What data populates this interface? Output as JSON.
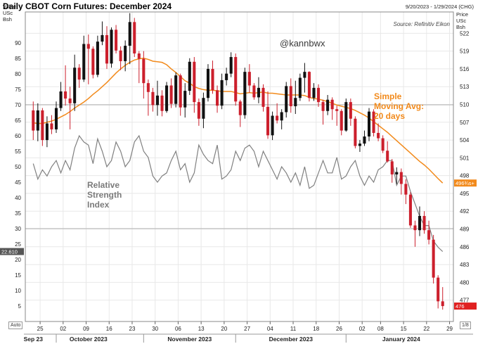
{
  "header": {
    "title": "Daily CBOT Corn Futures: December 2024",
    "date_range": "9/20/2023 - 1/29/2024 (CHG)",
    "source": "Source: Refinitiv Eikon",
    "watermark": "@kannbwx",
    "left_axis_header": [
      "Value",
      "USc",
      "Bsh"
    ],
    "right_axis_header": [
      "Price",
      "USc",
      "Bsh"
    ],
    "auto_label": "Auto",
    "scale_label": "1/8"
  },
  "annotations": {
    "sma_lines": [
      "Simple",
      "Moving Avg:",
      "20 days"
    ],
    "rsi_lines": [
      "Relative",
      "Strength",
      "Index"
    ]
  },
  "colors": {
    "up_candle": "#111111",
    "down_candle": "#cc1f2c",
    "sma_line": "#f28a1b",
    "rsi_line": "#808080",
    "grid": "#e8e8e8",
    "last_price_box": "#e02020",
    "sma_price_box": "#f28a1b",
    "rsi_value_box": "#555555"
  },
  "chart_data": {
    "type": "candlestick",
    "title": "Daily CBOT Corn Futures: December 2024",
    "y_left": {
      "label": "Value USc Bsh",
      "lim": [
        0,
        100
      ],
      "ticks": [
        5,
        10,
        15,
        20,
        25,
        30,
        35,
        40,
        45,
        50,
        55,
        60,
        65,
        70,
        75,
        80,
        85,
        90
      ]
    },
    "y_right": {
      "label": "Price USc Bsh",
      "lim": [
        473.4,
        525.6
      ],
      "ticks": [
        477,
        480,
        483,
        486,
        489,
        492,
        495,
        498,
        501,
        504,
        507,
        510,
        513,
        516,
        519,
        522
      ]
    },
    "x_ticks": [
      "25",
      "02",
      "09",
      "16",
      "23",
      "30",
      "06",
      "13",
      "20",
      "27",
      "04",
      "11",
      "18",
      "26",
      "02",
      "08",
      "15",
      "22",
      "29"
    ],
    "x_months": [
      "Sep 23",
      "October 2023",
      "November 2023",
      "December 2023",
      "January 2024"
    ],
    "reference_lines": [
      30,
      70
    ],
    "labels": {
      "rsi_value": "22.610",
      "sma_value": "496¾s+",
      "last_price": "476"
    },
    "candles": [
      [
        509.0,
        510.5,
        504.0,
        505.6
      ],
      [
        505.6,
        510.2,
        503.8,
        509.0
      ],
      [
        509.0,
        509.4,
        503.0,
        504.0
      ],
      [
        504.0,
        508.0,
        502.8,
        506.8
      ],
      [
        506.8,
        508.2,
        505.0,
        505.8
      ],
      [
        505.8,
        510.5,
        505.2,
        509.4
      ],
      [
        509.4,
        513.8,
        508.9,
        512.2
      ],
      [
        512.2,
        516.6,
        509.8,
        511.0
      ],
      [
        511.0,
        513.0,
        505.8,
        510.2
      ],
      [
        510.2,
        518.4,
        508.9,
        516.2
      ],
      [
        516.2,
        516.8,
        512.8,
        514.2
      ],
      [
        514.2,
        521.6,
        513.8,
        520.2
      ],
      [
        520.2,
        521.8,
        513.4,
        519.4
      ],
      [
        519.4,
        519.8,
        514.4,
        515.0
      ],
      [
        515.0,
        521.6,
        514.6,
        520.6
      ],
      [
        520.6,
        524.0,
        520.0,
        521.7
      ],
      [
        521.7,
        523.2,
        516.0,
        516.9
      ],
      [
        516.9,
        523.0,
        516.2,
        522.6
      ],
      [
        522.6,
        523.4,
        518.6,
        519.1
      ],
      [
        519.1,
        519.8,
        515.8,
        517.3
      ],
      [
        517.3,
        520.8,
        515.6,
        519.9
      ],
      [
        519.9,
        525.4,
        516.8,
        523.9
      ],
      [
        523.9,
        524.6,
        518.0,
        518.6
      ],
      [
        518.6,
        519.0,
        513.6,
        517.7
      ],
      [
        517.7,
        519.0,
        511.0,
        513.6
      ],
      [
        513.6,
        514.2,
        508.1,
        512.1
      ],
      [
        512.1,
        512.8,
        508.8,
        509.9
      ],
      [
        509.9,
        514.0,
        508.1,
        511.5
      ],
      [
        511.5,
        512.4,
        508.0,
        508.9
      ],
      [
        508.9,
        513.8,
        508.6,
        513.2
      ],
      [
        513.2,
        514.4,
        509.4,
        510.1
      ],
      [
        510.1,
        515.4,
        509.5,
        514.9
      ],
      [
        514.9,
        515.2,
        508.1,
        509.5
      ],
      [
        509.5,
        513.6,
        507.8,
        512.3
      ],
      [
        512.3,
        517.8,
        511.6,
        517.2
      ],
      [
        517.2,
        518.0,
        508.6,
        510.4
      ],
      [
        510.4,
        511.0,
        506.4,
        507.6
      ],
      [
        507.6,
        512.0,
        506.0,
        511.1
      ],
      [
        511.1,
        516.8,
        510.5,
        516.0
      ],
      [
        516.0,
        517.4,
        511.8,
        512.4
      ],
      [
        512.4,
        513.2,
        508.6,
        509.8
      ],
      [
        509.8,
        515.2,
        509.2,
        514.1
      ],
      [
        514.1,
        516.2,
        513.2,
        515.2
      ],
      [
        515.2,
        518.8,
        514.6,
        518.0
      ],
      [
        518.0,
        518.6,
        509.8,
        510.5
      ],
      [
        510.5,
        510.8,
        506.2,
        508.2
      ],
      [
        508.2,
        516.2,
        507.6,
        515.5
      ],
      [
        515.5,
        516.8,
        512.0,
        513.2
      ],
      [
        513.2,
        513.6,
        510.8,
        511.2
      ],
      [
        511.2,
        514.6,
        510.2,
        512.8
      ],
      [
        512.8,
        513.4,
        508.8,
        509.6
      ],
      [
        509.6,
        512.2,
        504.2,
        504.8
      ],
      [
        504.8,
        508.8,
        504.0,
        508.1
      ],
      [
        508.1,
        510.2,
        506.8,
        507.3
      ],
      [
        507.3,
        509.2,
        505.8,
        508.7
      ],
      [
        508.7,
        513.8,
        507.8,
        513.1
      ],
      [
        513.1,
        514.4,
        508.6,
        509.7
      ],
      [
        509.7,
        514.0,
        508.4,
        511.1
      ],
      [
        511.1,
        515.2,
        510.6,
        514.5
      ],
      [
        514.5,
        517.0,
        512.0,
        515.5
      ],
      [
        515.5,
        515.6,
        510.5,
        511.1
      ],
      [
        511.1,
        513.6,
        510.6,
        512.8
      ],
      [
        512.8,
        513.4,
        509.6,
        510.4
      ],
      [
        510.4,
        510.8,
        506.6,
        508.9
      ],
      [
        508.9,
        511.6,
        508.2,
        510.8
      ],
      [
        510.8,
        511.2,
        507.4,
        509.2
      ],
      [
        509.2,
        509.8,
        506.4,
        508.9
      ],
      [
        508.9,
        509.2,
        504.8,
        505.6
      ],
      [
        505.6,
        511.0,
        505.4,
        510.4
      ],
      [
        510.4,
        511.0,
        506.4,
        507.6
      ],
      [
        507.6,
        508.0,
        502.6,
        503.0
      ],
      [
        503.0,
        504.0,
        502.0,
        503.4
      ],
      [
        503.4,
        505.6,
        503.0,
        504.6
      ],
      [
        504.6,
        509.4,
        503.8,
        508.8
      ],
      [
        508.8,
        509.2,
        504.6,
        505.2
      ],
      [
        505.2,
        506.8,
        503.8,
        504.3
      ],
      [
        504.3,
        504.8,
        501.8,
        502.2
      ],
      [
        502.2,
        503.8,
        500.2,
        500.4
      ],
      [
        500.4,
        500.8,
        496.8,
        498.2
      ],
      [
        498.2,
        499.4,
        496.6,
        498.6
      ],
      [
        498.6,
        499.2,
        494.8,
        496.6
      ],
      [
        496.6,
        497.4,
        493.2,
        494.8
      ],
      [
        494.8,
        495.2,
        489.2,
        489.6
      ],
      [
        489.6,
        490.4,
        486.0,
        488.8
      ],
      [
        488.8,
        492.8,
        487.8,
        491.2
      ],
      [
        491.2,
        492.0,
        488.2,
        488.8
      ],
      [
        488.8,
        490.4,
        486.4,
        487.2
      ],
      [
        487.2,
        488.0,
        479.8,
        480.8
      ],
      [
        480.8,
        481.2,
        475.6,
        476.8
      ],
      [
        476.8,
        479.2,
        475.4,
        476.0
      ]
    ],
    "sma_20": [
      506.9,
      506.8,
      506.8,
      507.0,
      507.2,
      507.5,
      507.9,
      508.3,
      508.8,
      509.4,
      509.9,
      510.4,
      511.0,
      511.7,
      512.3,
      513.0,
      513.7,
      514.5,
      515.3,
      516.0,
      516.6,
      517.1,
      517.5,
      517.7,
      517.8,
      517.6,
      517.3,
      517.2,
      517.1,
      516.7,
      516.0,
      515.4,
      514.7,
      514.0,
      513.6,
      513.0,
      512.7,
      512.5,
      512.4,
      512.4,
      512.3,
      512.2,
      512.2,
      512.2,
      512.0,
      511.8,
      511.9,
      512.0,
      511.9,
      512.0,
      512.1,
      511.9,
      511.9,
      511.8,
      511.7,
      511.6,
      511.6,
      511.6,
      511.6,
      511.5,
      511.2,
      511.0,
      510.9,
      510.7,
      510.5,
      510.2,
      509.9,
      509.7,
      509.5,
      509.3,
      509.0,
      508.6,
      508.2,
      507.7,
      507.1,
      506.5,
      505.9,
      505.3,
      504.6,
      503.9,
      503.2,
      502.5,
      501.8,
      501.1,
      500.4,
      499.8,
      499.1,
      498.3,
      497.5,
      496.75
    ],
    "rsi_14": [
      51,
      46,
      49,
      47,
      50,
      52,
      48,
      52,
      49,
      56,
      60,
      58,
      57,
      51,
      59,
      55,
      50,
      52,
      58,
      55,
      50,
      52,
      58,
      60,
      55,
      53,
      47,
      45,
      47,
      48,
      52,
      55,
      49,
      51,
      45,
      48,
      57,
      54,
      52,
      51,
      57,
      46,
      47,
      49,
      55,
      52,
      56,
      57,
      55,
      50,
      55,
      52,
      49,
      46,
      50,
      48,
      45,
      48,
      44,
      50,
      43,
      44,
      48,
      52,
      48,
      48,
      53,
      46,
      47,
      50,
      52,
      47,
      44,
      47,
      45,
      49,
      50,
      52,
      52,
      44,
      47,
      47,
      42,
      38,
      34,
      31,
      31,
      26,
      24,
      22.6
    ]
  }
}
